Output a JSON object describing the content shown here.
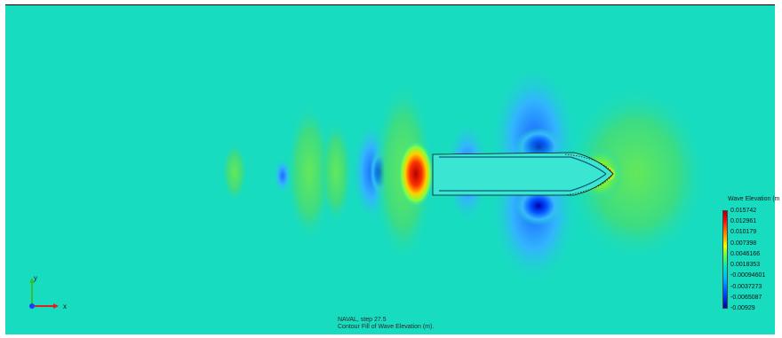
{
  "legend": {
    "title": "Wave Elevation (m",
    "ticks": [
      "0.015742",
      "0.012961",
      "0.010179",
      "0.007398",
      "0.0046166",
      "0.0018353",
      "-0.00094601",
      "-0.0037273",
      "-0.0065087",
      "-0.00929"
    ],
    "colors": [
      "#a50000",
      "#e8001a",
      "#ff5a00",
      "#ffb000",
      "#f2ff00",
      "#64ff4a",
      "#00e5c0",
      "#00b4ff",
      "#0050ff",
      "#0000a8"
    ]
  },
  "footer": {
    "line1": "NAVAL, step 27.5",
    "line2": "Contour Fill of Wave Elevation (m)."
  },
  "axes": {
    "x": "x",
    "y": "y"
  },
  "colors": {
    "background": "#18dcc0",
    "hull": "#3ae6d2"
  }
}
